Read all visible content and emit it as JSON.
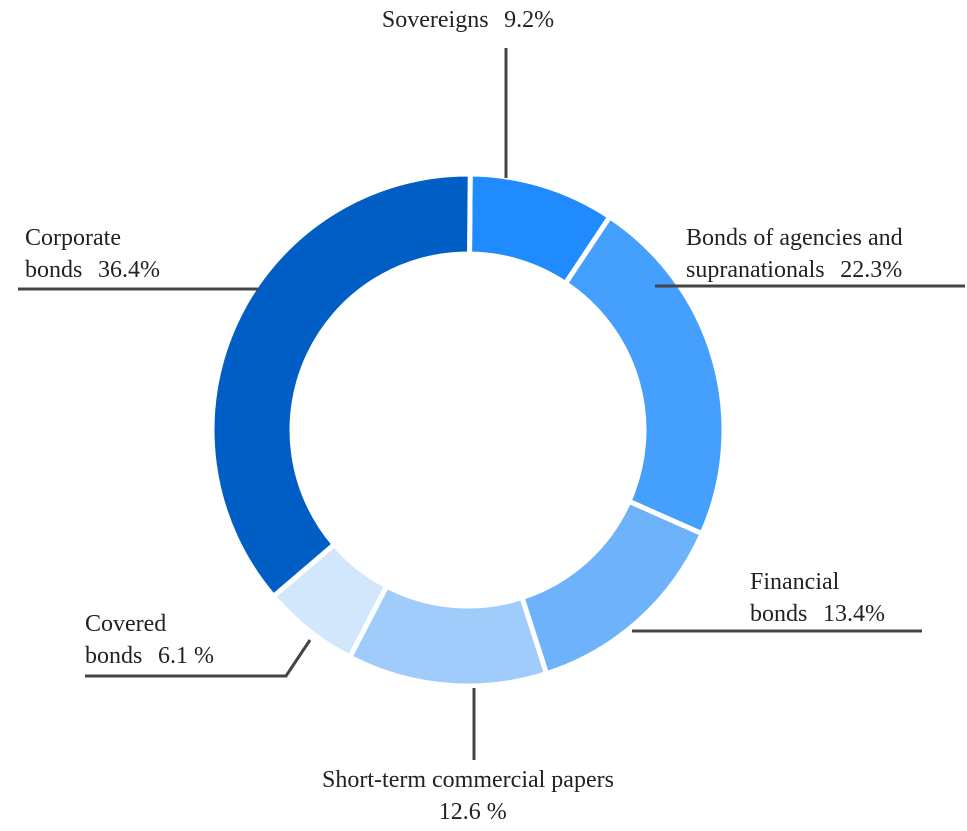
{
  "chart_data": {
    "type": "donut",
    "categories": [
      "Sovereigns",
      "Bonds of agencies and supranationals",
      "Financial bonds",
      "Short-term commercial papers",
      "Covered bonds",
      "Corporate bonds"
    ],
    "values": [
      9.2,
      22.3,
      13.4,
      12.6,
      6.1,
      36.4
    ],
    "value_labels": [
      "9.2%",
      "22.3%",
      "13.4%",
      "12.6 %",
      "6.1 %",
      "36.4%"
    ],
    "colors": [
      "#1f8bff",
      "#449ffd",
      "#6db2fb",
      "#9fccfb",
      "#d3e7fc",
      "#005ec4"
    ]
  }
}
